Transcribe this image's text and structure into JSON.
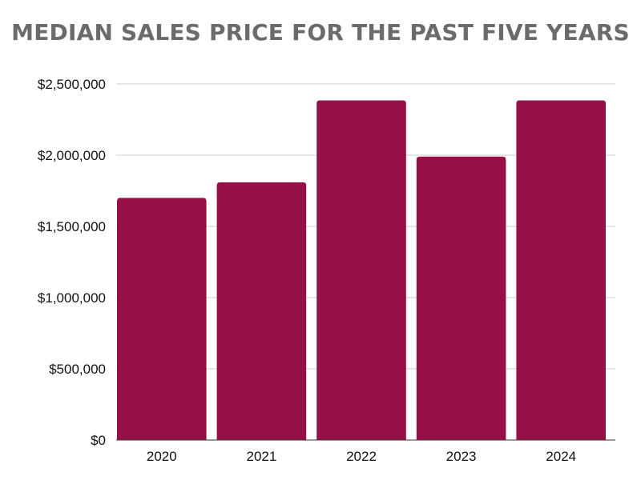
{
  "chart_data": {
    "type": "bar",
    "title": "MEDIAN SALES PRICE FOR THE PAST FIVE YEARS",
    "xlabel": "",
    "ylabel": "",
    "categories": [
      "2020",
      "2021",
      "2022",
      "2023",
      "2024"
    ],
    "values": [
      1700000,
      1810000,
      2385000,
      1990000,
      2385000
    ],
    "ylim": [
      0,
      2500000
    ],
    "y_ticks": [
      0,
      500000,
      1000000,
      1500000,
      2000000,
      2500000
    ],
    "y_tick_labels": [
      "$0",
      "$500,000",
      "$1,000,000",
      "$1,500,000",
      "$2,000,000",
      "$2,500,000"
    ],
    "grid": true,
    "legend": "none",
    "bar_color": "#951047",
    "title_color": "#6b6b6b",
    "grid_color": "#cccccc"
  }
}
